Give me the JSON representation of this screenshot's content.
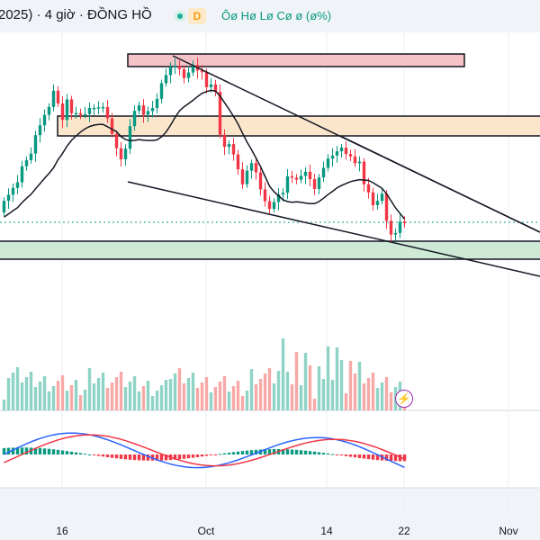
{
  "header": {
    "title": "2025) · 4 giờ · ĐỒNG HỒ",
    "badge": "D",
    "ohlc": "Ôø Hø Lø Cø ø (ø%)"
  },
  "colors": {
    "up": "#089981",
    "down": "#f23645",
    "up_light": "#8fd3c7",
    "down_light": "#f7a9a7",
    "ma": "#131722",
    "macd_line": "#2962ff",
    "signal_line": "#f23645",
    "zone_top": "#f5c2c7",
    "zone_mid": "#fbe6cc",
    "zone_bottom": "#cfe9d7"
  },
  "icons": {
    "live": "live-dot-icon",
    "alert": "lightning-bolt-icon"
  },
  "chart_data": {
    "type": "candlestick",
    "x_ticks": [
      "16",
      "Oct",
      "14",
      "22",
      "Nov"
    ],
    "bars": 90,
    "trend_lines": 3,
    "zones": 3,
    "moving_average": true,
    "volume": true,
    "macd": true,
    "grid": false
  }
}
